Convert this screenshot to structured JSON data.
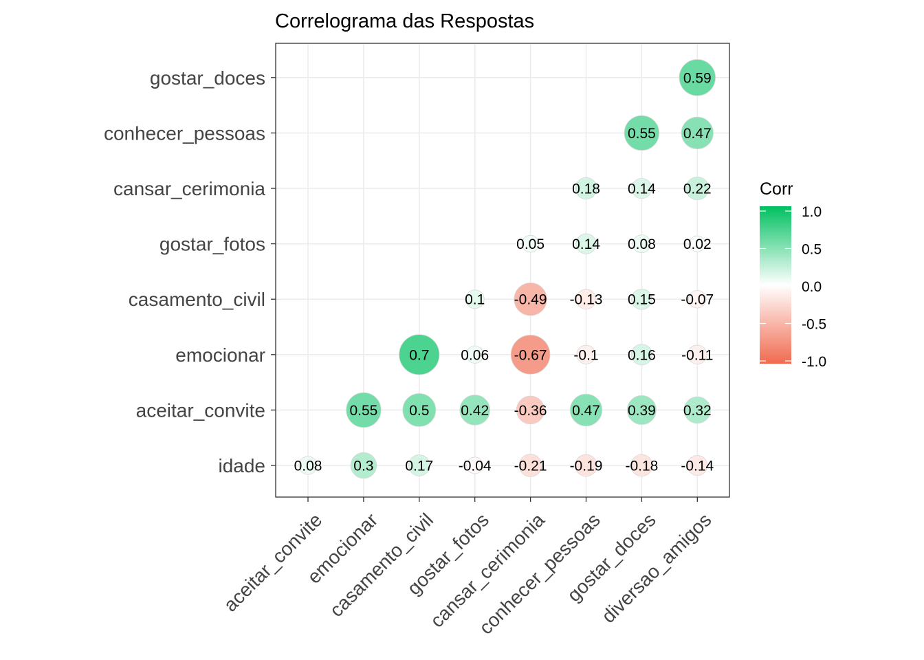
{
  "chart_data": {
    "type": "heatmap",
    "title": "Correlograma das Respostas",
    "x_categories": [
      "aceitar_convite",
      "emocionar",
      "casamento_civil",
      "gostar_fotos",
      "cansar_cerimonia",
      "conhecer_pessoas",
      "gostar_doces",
      "diversao_amigos"
    ],
    "y_categories": [
      "idade",
      "aceitar_convite",
      "emocionar",
      "casamento_civil",
      "gostar_fotos",
      "cansar_cerimonia",
      "conhecer_pessoas",
      "gostar_doces"
    ],
    "cells": [
      {
        "x": "aceitar_convite",
        "y": "idade",
        "value": 0.08,
        "label": "0.08"
      },
      {
        "x": "emocionar",
        "y": "idade",
        "value": 0.3,
        "label": "0.3"
      },
      {
        "x": "casamento_civil",
        "y": "idade",
        "value": 0.17,
        "label": "0.17"
      },
      {
        "x": "gostar_fotos",
        "y": "idade",
        "value": -0.04,
        "label": "-0.04"
      },
      {
        "x": "cansar_cerimonia",
        "y": "idade",
        "value": -0.21,
        "label": "-0.21"
      },
      {
        "x": "conhecer_pessoas",
        "y": "idade",
        "value": -0.19,
        "label": "-0.19"
      },
      {
        "x": "gostar_doces",
        "y": "idade",
        "value": -0.18,
        "label": "-0.18"
      },
      {
        "x": "diversao_amigos",
        "y": "idade",
        "value": -0.14,
        "label": "-0.14"
      },
      {
        "x": "emocionar",
        "y": "aceitar_convite",
        "value": 0.55,
        "label": "0.55"
      },
      {
        "x": "casamento_civil",
        "y": "aceitar_convite",
        "value": 0.5,
        "label": "0.5"
      },
      {
        "x": "gostar_fotos",
        "y": "aceitar_convite",
        "value": 0.42,
        "label": "0.42"
      },
      {
        "x": "cansar_cerimonia",
        "y": "aceitar_convite",
        "value": -0.36,
        "label": "-0.36"
      },
      {
        "x": "conhecer_pessoas",
        "y": "aceitar_convite",
        "value": 0.47,
        "label": "0.47"
      },
      {
        "x": "gostar_doces",
        "y": "aceitar_convite",
        "value": 0.39,
        "label": "0.39"
      },
      {
        "x": "diversao_amigos",
        "y": "aceitar_convite",
        "value": 0.32,
        "label": "0.32"
      },
      {
        "x": "casamento_civil",
        "y": "emocionar",
        "value": 0.7,
        "label": "0.7"
      },
      {
        "x": "gostar_fotos",
        "y": "emocionar",
        "value": 0.06,
        "label": "0.06"
      },
      {
        "x": "cansar_cerimonia",
        "y": "emocionar",
        "value": -0.67,
        "label": "-0.67"
      },
      {
        "x": "conhecer_pessoas",
        "y": "emocionar",
        "value": -0.1,
        "label": "-0.1"
      },
      {
        "x": "gostar_doces",
        "y": "emocionar",
        "value": 0.16,
        "label": "0.16"
      },
      {
        "x": "diversao_amigos",
        "y": "emocionar",
        "value": -0.11,
        "label": "-0.11"
      },
      {
        "x": "gostar_fotos",
        "y": "casamento_civil",
        "value": 0.1,
        "label": "0.1"
      },
      {
        "x": "cansar_cerimonia",
        "y": "casamento_civil",
        "value": -0.49,
        "label": "-0.49"
      },
      {
        "x": "conhecer_pessoas",
        "y": "casamento_civil",
        "value": -0.13,
        "label": "-0.13"
      },
      {
        "x": "gostar_doces",
        "y": "casamento_civil",
        "value": 0.15,
        "label": "0.15"
      },
      {
        "x": "diversao_amigos",
        "y": "casamento_civil",
        "value": -0.07,
        "label": "-0.07"
      },
      {
        "x": "cansar_cerimonia",
        "y": "gostar_fotos",
        "value": 0.05,
        "label": "0.05"
      },
      {
        "x": "conhecer_pessoas",
        "y": "gostar_fotos",
        "value": 0.14,
        "label": "0.14"
      },
      {
        "x": "gostar_doces",
        "y": "gostar_fotos",
        "value": 0.08,
        "label": "0.08"
      },
      {
        "x": "diversao_amigos",
        "y": "gostar_fotos",
        "value": 0.02,
        "label": "0.02"
      },
      {
        "x": "conhecer_pessoas",
        "y": "cansar_cerimonia",
        "value": 0.18,
        "label": "0.18"
      },
      {
        "x": "gostar_doces",
        "y": "cansar_cerimonia",
        "value": 0.14,
        "label": "0.14"
      },
      {
        "x": "diversao_amigos",
        "y": "cansar_cerimonia",
        "value": 0.22,
        "label": "0.22"
      },
      {
        "x": "gostar_doces",
        "y": "conhecer_pessoas",
        "value": 0.55,
        "label": "0.55"
      },
      {
        "x": "diversao_amigos",
        "y": "conhecer_pessoas",
        "value": 0.47,
        "label": "0.47"
      },
      {
        "x": "diversao_amigos",
        "y": "gostar_doces",
        "value": 0.59,
        "label": "0.59"
      }
    ],
    "legend": {
      "title": "Corr",
      "placement": "right",
      "ticks": [
        1.0,
        0.5,
        0.0,
        -0.5,
        -1.0
      ],
      "tick_labels": [
        "1.0",
        "0.5",
        "0.0",
        "-0.5",
        "-1.0"
      ],
      "range": [
        -1,
        1
      ]
    },
    "colors": {
      "high": "#00c060",
      "mid": "#ffffff",
      "low": "#f06a4f"
    },
    "grid": true,
    "panel_border": true
  }
}
